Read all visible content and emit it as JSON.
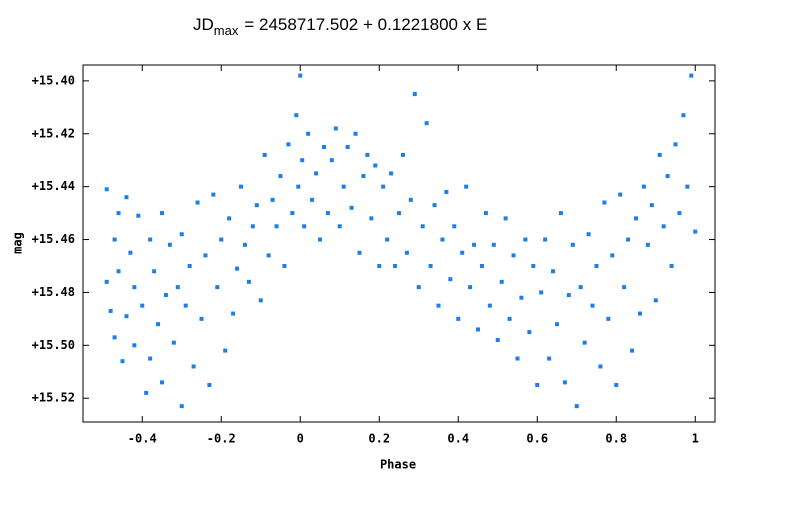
{
  "chart_data": {
    "type": "scatter",
    "title": "JD",
    "title_sub": "max",
    "title_rest": "= 2458717.502 + 0.1221800 x E",
    "x_label": "Phase",
    "y_label": "mag",
    "color": "#1a7fe8",
    "y_inverted": true,
    "xlim": [
      -0.55,
      1.05
    ],
    "ylim": [
      15.394,
      15.529
    ],
    "xticks": [
      {
        "value": -0.4,
        "label": "-0.4"
      },
      {
        "value": -0.2,
        "label": "-0.2"
      },
      0,
      {
        "value": 0.2,
        "label": "0.2"
      },
      {
        "value": 0.4,
        "label": "0.4"
      },
      {
        "value": 0.6,
        "label": "0.6"
      },
      {
        "value": 0.8,
        "label": "0.8"
      },
      1
    ],
    "yticks": [
      {
        "value": 15.4,
        "label": "+15.40"
      },
      {
        "value": 15.42,
        "label": "+15.42"
      },
      {
        "value": 15.44,
        "label": "+15.44"
      },
      {
        "value": 15.46,
        "label": "+15.46"
      },
      {
        "value": 15.48,
        "label": "+15.48"
      },
      {
        "value": 15.5,
        "label": "+15.50"
      },
      {
        "value": 15.52,
        "label": "+15.52"
      }
    ],
    "x": [
      -0.49,
      -0.49,
      -0.48,
      -0.47,
      -0.47,
      -0.46,
      -0.46,
      -0.45,
      -0.44,
      -0.44,
      -0.43,
      -0.42,
      -0.42,
      -0.41,
      -0.4,
      -0.39,
      -0.38,
      -0.38,
      -0.37,
      -0.36,
      -0.35,
      -0.35,
      -0.34,
      -0.33,
      -0.32,
      -0.31,
      -0.3,
      -0.3,
      -0.29,
      -0.28,
      -0.27,
      -0.26,
      -0.25,
      -0.24,
      -0.23,
      -0.22,
      -0.21,
      -0.2,
      -0.19,
      -0.18,
      -0.17,
      -0.16,
      -0.15,
      -0.14,
      -0.13,
      -0.12,
      -0.11,
      -0.1,
      -0.09,
      -0.08,
      -0.07,
      -0.06,
      -0.05,
      -0.04,
      -0.03,
      -0.02,
      -0.01,
      -0.005,
      0.0,
      0.005,
      0.01,
      0.02,
      0.03,
      0.04,
      0.05,
      0.06,
      0.07,
      0.08,
      0.09,
      0.1,
      0.11,
      0.12,
      0.13,
      0.14,
      0.15,
      0.16,
      0.17,
      0.18,
      0.19,
      0.2,
      0.21,
      0.22,
      0.23,
      0.24,
      0.25,
      0.26,
      0.27,
      0.28,
      0.29,
      0.3,
      0.31,
      0.32,
      0.33,
      0.34,
      0.35,
      0.36,
      0.37,
      0.38,
      0.39,
      0.4,
      0.41,
      0.42,
      0.43,
      0.44,
      0.45,
      0.46,
      0.47,
      0.48,
      0.49,
      0.5,
      0.51,
      0.52,
      0.53,
      0.54,
      0.55,
      0.56,
      0.57,
      0.58,
      0.59,
      0.6,
      0.61,
      0.62,
      0.63,
      0.64,
      0.65,
      0.66,
      0.67,
      0.68,
      0.69,
      0.7,
      0.71,
      0.72,
      0.73,
      0.74,
      0.75,
      0.76,
      0.77,
      0.78,
      0.79,
      0.8,
      0.81,
      0.82,
      0.83,
      0.84,
      0.85,
      0.86,
      0.87,
      0.88,
      0.89,
      0.9,
      0.91,
      0.92,
      0.93,
      0.94,
      0.95,
      0.96,
      0.97,
      0.98,
      0.99,
      1.0
    ],
    "values": [
      15.441,
      15.476,
      15.487,
      15.46,
      15.497,
      15.45,
      15.472,
      15.506,
      15.444,
      15.489,
      15.465,
      15.478,
      15.5,
      15.451,
      15.485,
      15.518,
      15.46,
      15.505,
      15.472,
      15.492,
      15.45,
      15.514,
      15.481,
      15.462,
      15.499,
      15.478,
      15.523,
      15.458,
      15.485,
      15.47,
      15.508,
      15.446,
      15.49,
      15.466,
      15.515,
      15.443,
      15.478,
      15.46,
      15.502,
      15.452,
      15.488,
      15.471,
      15.44,
      15.462,
      15.476,
      15.455,
      15.447,
      15.483,
      15.428,
      15.466,
      15.445,
      15.455,
      15.436,
      15.47,
      15.424,
      15.45,
      15.413,
      15.44,
      15.398,
      15.43,
      15.455,
      15.42,
      15.445,
      15.435,
      15.46,
      15.425,
      15.45,
      15.43,
      15.418,
      15.455,
      15.44,
      15.425,
      15.448,
      15.42,
      15.465,
      15.436,
      15.428,
      15.452,
      15.432,
      15.47,
      15.44,
      15.46,
      15.435,
      15.47,
      15.45,
      15.428,
      15.465,
      15.445,
      15.405,
      15.478,
      15.455,
      15.416,
      15.47,
      15.447,
      15.485,
      15.46,
      15.442,
      15.475,
      15.455,
      15.49,
      15.465,
      15.44,
      15.478,
      15.462,
      15.494,
      15.47,
      15.45,
      15.485,
      15.462,
      15.498,
      15.476,
      15.452,
      15.49,
      15.466,
      15.505,
      15.482,
      15.46,
      15.495,
      15.47,
      15.515,
      15.48,
      15.46,
      15.505,
      15.472,
      15.492,
      15.45,
      15.514,
      15.481,
      15.462,
      15.523,
      15.478,
      15.499,
      15.458,
      15.485,
      15.47,
      15.508,
      15.446,
      15.49,
      15.466,
      15.515,
      15.443,
      15.478,
      15.46,
      15.502,
      15.452,
      15.488,
      15.44,
      15.462,
      15.447,
      15.483,
      15.428,
      15.455,
      15.436,
      15.47,
      15.424,
      15.45,
      15.413,
      15.44,
      15.398,
      15.457
    ]
  }
}
